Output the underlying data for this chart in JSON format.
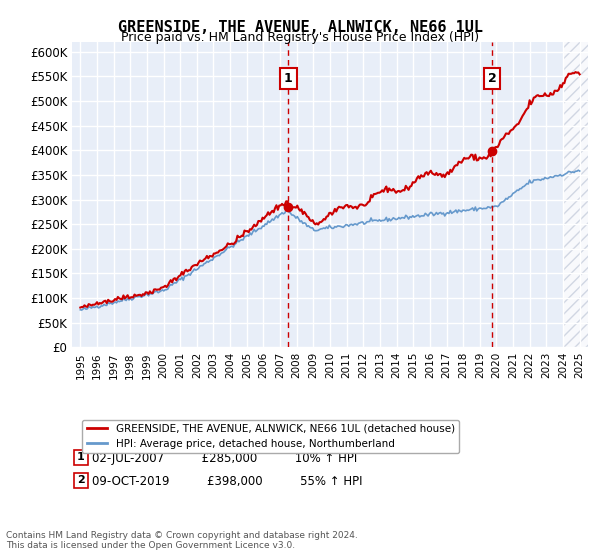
{
  "title": "GREENSIDE, THE AVENUE, ALNWICK, NE66 1UL",
  "subtitle": "Price paid vs. HM Land Registry's House Price Index (HPI)",
  "property_label": "GREENSIDE, THE AVENUE, ALNWICK, NE66 1UL (detached house)",
  "hpi_label": "HPI: Average price, detached house, Northumberland",
  "footnote": "Contains HM Land Registry data © Crown copyright and database right 2024.\nThis data is licensed under the Open Government Licence v3.0.",
  "sale1_date": "02-JUL-2007",
  "sale1_price": 285000,
  "sale1_hpi": "10% ↑ HPI",
  "sale2_date": "09-OCT-2019",
  "sale2_price": 398000,
  "sale2_hpi": "55% ↑ HPI",
  "vline1_x": 2007.5,
  "vline2_x": 2019.75,
  "sale1_marker_x": 2007.5,
  "sale1_marker_y": 285000,
  "sale2_marker_x": 2019.75,
  "sale2_marker_y": 398000,
  "ylim": [
    0,
    620000
  ],
  "yticks": [
    0,
    50000,
    100000,
    150000,
    200000,
    250000,
    300000,
    350000,
    400000,
    450000,
    500000,
    550000,
    600000
  ],
  "ytick_labels": [
    "£0",
    "£50K",
    "£100K",
    "£150K",
    "£200K",
    "£250K",
    "£300K",
    "£350K",
    "£400K",
    "£450K",
    "£500K",
    "£550K",
    "£600K"
  ],
  "xlim_start": 1994.5,
  "xlim_end": 2025.5,
  "xtick_years": [
    1995,
    1996,
    1997,
    1998,
    1999,
    2000,
    2001,
    2002,
    2003,
    2004,
    2005,
    2006,
    2007,
    2008,
    2009,
    2010,
    2011,
    2012,
    2013,
    2014,
    2015,
    2016,
    2017,
    2018,
    2019,
    2020,
    2021,
    2022,
    2023,
    2024,
    2025
  ],
  "bg_color": "#e8eef8",
  "hatch_color": "#c0c8d8",
  "grid_color": "#ffffff",
  "red_line_color": "#cc0000",
  "blue_line_color": "#6699cc",
  "sale_marker_color": "#cc0000"
}
